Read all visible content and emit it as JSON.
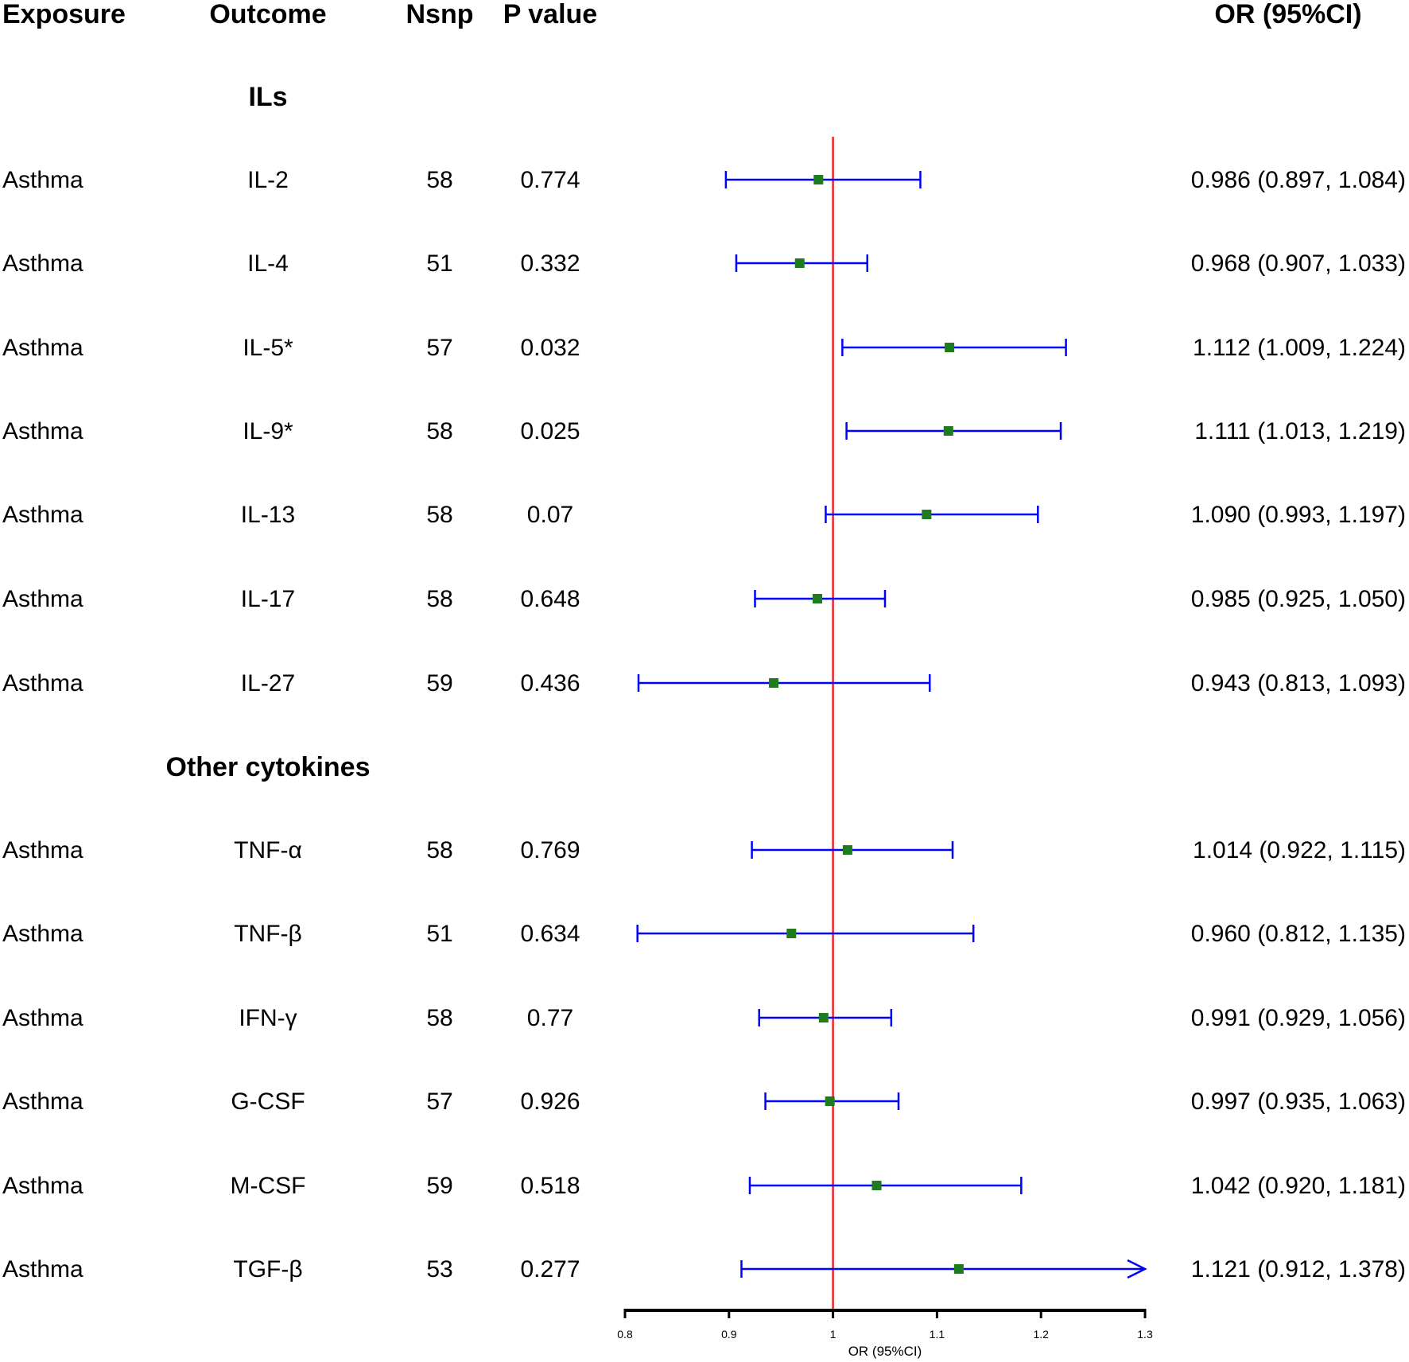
{
  "headers": {
    "exposure": "Exposure",
    "outcome": "Outcome",
    "nsnp": "Nsnp",
    "pvalue": "P value",
    "or": "OR (95%CI)"
  },
  "chart_data": {
    "type": "forest",
    "xlabel": "OR (95%CI)",
    "xlim": [
      0.8,
      1.3
    ],
    "xticks": [
      "0.8",
      "0.9",
      "1",
      "1.1",
      "1.2",
      "1.3"
    ],
    "reference_line": 1,
    "colors": {
      "ci": "#0000ff",
      "point": "#1e7b1e",
      "reference": "#e8282d"
    },
    "groups": [
      {
        "label": "ILs",
        "rows": [
          {
            "exposure": "Asthma",
            "outcome": "IL-2",
            "nsnp": "58",
            "p": "0.774",
            "or": 0.986,
            "lo": 0.897,
            "hi": 1.084,
            "text": "0.986 (0.897, 1.084)"
          },
          {
            "exposure": "Asthma",
            "outcome": "IL-4",
            "nsnp": "51",
            "p": "0.332",
            "or": 0.968,
            "lo": 0.907,
            "hi": 1.033,
            "text": "0.968 (0.907, 1.033)"
          },
          {
            "exposure": "Asthma",
            "outcome": "IL-5*",
            "nsnp": "57",
            "p": "0.032",
            "or": 1.112,
            "lo": 1.009,
            "hi": 1.224,
            "text": "1.112 (1.009, 1.224)"
          },
          {
            "exposure": "Asthma",
            "outcome": "IL-9*",
            "nsnp": "58",
            "p": "0.025",
            "or": 1.111,
            "lo": 1.013,
            "hi": 1.219,
            "text": "1.111 (1.013, 1.219)"
          },
          {
            "exposure": "Asthma",
            "outcome": "IL-13",
            "nsnp": "58",
            "p": "0.07",
            "or": 1.09,
            "lo": 0.993,
            "hi": 1.197,
            "text": "1.090 (0.993, 1.197)"
          },
          {
            "exposure": "Asthma",
            "outcome": "IL-17",
            "nsnp": "58",
            "p": "0.648",
            "or": 0.985,
            "lo": 0.925,
            "hi": 1.05,
            "text": "0.985 (0.925, 1.050)"
          },
          {
            "exposure": "Asthma",
            "outcome": "IL-27",
            "nsnp": "59",
            "p": "0.436",
            "or": 0.943,
            "lo": 0.813,
            "hi": 1.093,
            "text": "0.943 (0.813, 1.093)"
          }
        ]
      },
      {
        "label": "Other cytokines",
        "rows": [
          {
            "exposure": "Asthma",
            "outcome": "TNF-α",
            "nsnp": "58",
            "p": "0.769",
            "or": 1.014,
            "lo": 0.922,
            "hi": 1.115,
            "text": "1.014 (0.922, 1.115)"
          },
          {
            "exposure": "Asthma",
            "outcome": "TNF-β",
            "nsnp": "51",
            "p": "0.634",
            "or": 0.96,
            "lo": 0.812,
            "hi": 1.135,
            "text": "0.960 (0.812, 1.135)"
          },
          {
            "exposure": "Asthma",
            "outcome": "IFN-γ",
            "nsnp": "58",
            "p": "0.77",
            "or": 0.991,
            "lo": 0.929,
            "hi": 1.056,
            "text": "0.991 (0.929, 1.056)"
          },
          {
            "exposure": "Asthma",
            "outcome": "G-CSF",
            "nsnp": "57",
            "p": "0.926",
            "or": 0.997,
            "lo": 0.935,
            "hi": 1.063,
            "text": "0.997 (0.935, 1.063)"
          },
          {
            "exposure": "Asthma",
            "outcome": "M-CSF",
            "nsnp": "59",
            "p": "0.518",
            "or": 1.042,
            "lo": 0.92,
            "hi": 1.181,
            "text": "1.042 (0.920, 1.181)"
          },
          {
            "exposure": "Asthma",
            "outcome": "TGF-β",
            "nsnp": "53",
            "p": "0.277",
            "or": 1.121,
            "lo": 0.912,
            "hi": 1.378,
            "text": "1.121 (0.912, 1.378)"
          }
        ]
      }
    ]
  }
}
